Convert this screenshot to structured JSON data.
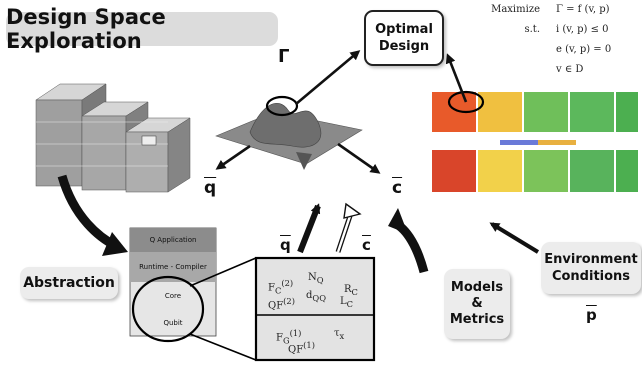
{
  "title": "Design Space Exploration",
  "optimal_design": [
    "Optimal",
    "Design"
  ],
  "abstraction": "Abstraction",
  "models_metrics": [
    "Models",
    "&",
    "Metrics"
  ],
  "environment": [
    "Environment",
    "Conditions"
  ],
  "symbols": {
    "gamma": "Γ",
    "q": "q",
    "c": "c",
    "p": "p"
  },
  "optimization": {
    "maximize_label": "Maximize",
    "objective": "Γ = f (v, p)",
    "st_label": "s.t.",
    "constraints": [
      "i (v, p) ≤ 0",
      "e (v, p) = 0",
      "v ∈ D"
    ]
  },
  "stack_layers": [
    "Q Application",
    "Runtime - Compiler",
    "Core",
    "Qubit"
  ],
  "metrics": {
    "core_row": [
      "F",
      "N",
      "R",
      "QF",
      "d",
      "L"
    ],
    "core_sub": [
      "C",
      "Q",
      "C",
      "",
      "QQ",
      "C"
    ],
    "core_sup": [
      "(2)",
      "",
      "",
      "(2)",
      "",
      ""
    ],
    "qubit_row": [
      "F",
      "QF",
      "τ"
    ],
    "qubit_sub": [
      "G",
      "",
      "x"
    ],
    "qubit_sup": [
      "(1)",
      "(1)",
      ""
    ]
  },
  "colors": {
    "accent": "#2a2a2a",
    "surface": "#8a8a8a",
    "box_bg": "#ececec"
  },
  "icons": [
    "arrow-icon",
    "hollow-arrow-icon",
    "surface-plot-icon",
    "heatmap-icon",
    "stack-icon",
    "circle-highlight-icon"
  ]
}
